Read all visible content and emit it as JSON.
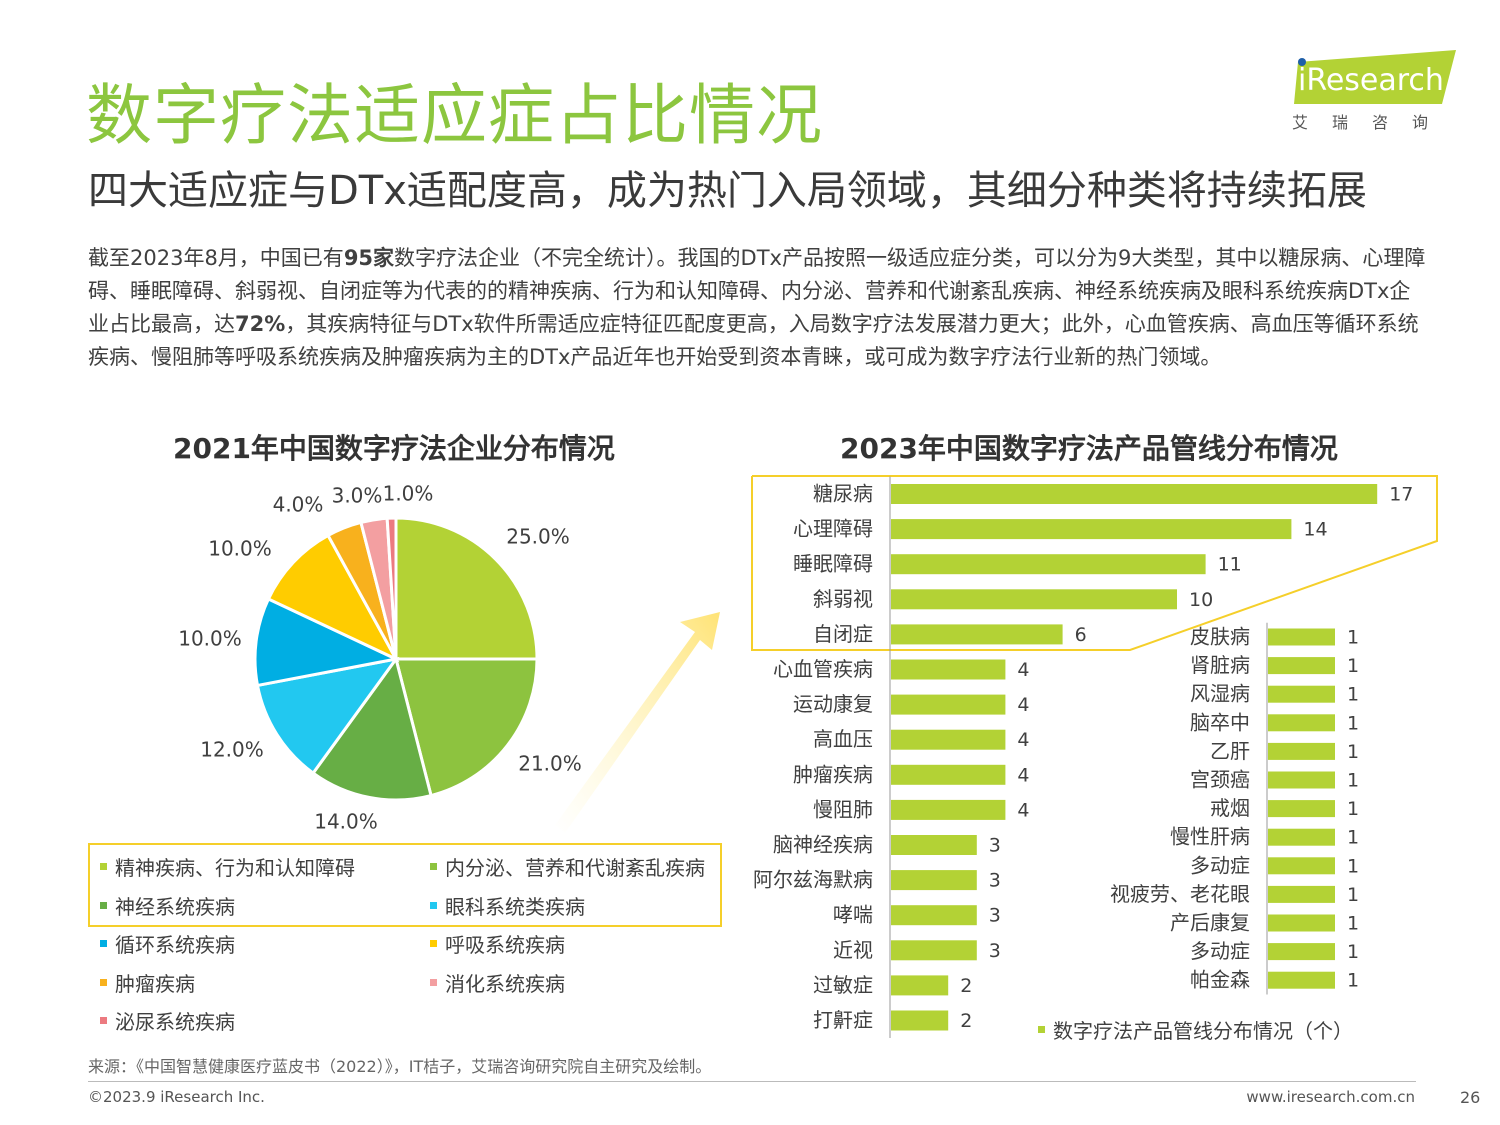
{
  "header": {
    "title": "数字疗法适应症占比情况",
    "subtitle": "四大适应症与DTx适配度高，成为热门入局领域，其细分种类将持续拓展",
    "logo_text": "iResearch",
    "logo_cn": "艾 瑞 咨 询"
  },
  "paragraph": {
    "p1": "截至2023年8月，中国已有",
    "b1": "95家",
    "p2": "数字疗法企业（不完全统计）。我国的DTx产品按照一级适应症分类，可以分为9大类型，其中以糖尿病、心理障碍、睡眠障碍、斜弱视、自闭症等为代表的的精神疾病、行为和认知障碍、内分泌、营养和代谢紊乱疾病、神经系统疾病及眼科系统疾病DTx企业占比最高，达",
    "b2": "72%",
    "p3": "，其疾病特征与DTx软件所需适应症特征匹配度更高，入局数字疗法发展潜力更大；此外，心血管疾病、高血压等循环系统疾病、慢阻肺等呼吸系统疾病及肿瘤疾病为主的DTx产品近年也开始受到资本青睐，或可成为数字疗法行业新的热门领域。"
  },
  "chart_data": [
    {
      "type": "pie",
      "title": "2021年中国数字疗法企业分布情况",
      "slices": [
        {
          "label": "精神疾病、行为和认知障碍",
          "value": 25.0,
          "text": "25.0%",
          "color": "#b3d235"
        },
        {
          "label": "内分泌、营养和代谢紊乱疾病",
          "value": 21.0,
          "text": "21.0%",
          "color": "#8dc33f"
        },
        {
          "label": "神经系统疾病",
          "value": 14.0,
          "text": "14.0%",
          "color": "#67ae45"
        },
        {
          "label": "眼科系统类疾病",
          "value": 12.0,
          "text": "12.0%",
          "color": "#22c8f0"
        },
        {
          "label": "循环系统疾病",
          "value": 10.0,
          "text": "10.0%",
          "color": "#00aee3"
        },
        {
          "label": "呼吸系统疾病",
          "value": 10.0,
          "text": "10.0%",
          "color": "#ffcc00"
        },
        {
          "label": "肿瘤疾病",
          "value": 4.0,
          "text": "4.0%",
          "color": "#f8b11d"
        },
        {
          "label": "消化系统疾病",
          "value": 3.0,
          "text": "3.0%",
          "color": "#f39fa1"
        },
        {
          "label": "泌尿系统疾病",
          "value": 1.0,
          "text": "1.0%",
          "color": "#ec7a80"
        }
      ]
    },
    {
      "type": "bar",
      "orientation": "horizontal",
      "title": "2023年中国数字疗法产品管线分布情况",
      "legend": "数字疗法产品管线分布情况（个）",
      "color": "#b3d235",
      "categories": [
        "糖尿病",
        "心理障碍",
        "睡眠障碍",
        "斜弱视",
        "自闭症",
        "心血管疾病",
        "运动康复",
        "高血压",
        "肿瘤疾病",
        "慢阻肺",
        "脑神经疾病",
        "阿尔兹海默病",
        "哮喘",
        "近视",
        "过敏症",
        "打鼾症"
      ],
      "values": [
        17,
        14,
        11,
        10,
        6,
        4,
        4,
        4,
        4,
        4,
        3,
        3,
        3,
        3,
        2,
        2
      ]
    },
    {
      "type": "bar",
      "orientation": "horizontal",
      "color": "#b3d235",
      "categories": [
        "皮肤病",
        "肾脏病",
        "风湿病",
        "脑卒中",
        "乙肝",
        "宫颈癌",
        "戒烟",
        "慢性肝病",
        "多动症",
        "视疲劳、老花眼",
        "产后康复",
        "多动症",
        "帕金森"
      ],
      "values": [
        1,
        1,
        1,
        1,
        1,
        1,
        1,
        1,
        1,
        1,
        1,
        1,
        1
      ]
    }
  ],
  "footer": {
    "source": "来源：《中国智慧健康医疗蓝皮书（2022）》，IT桔子，艾瑞咨询研究院自主研究及绘制。",
    "copyright": "©2023.9 iResearch Inc.",
    "website": "www.iresearch.com.cn",
    "page": "26"
  }
}
